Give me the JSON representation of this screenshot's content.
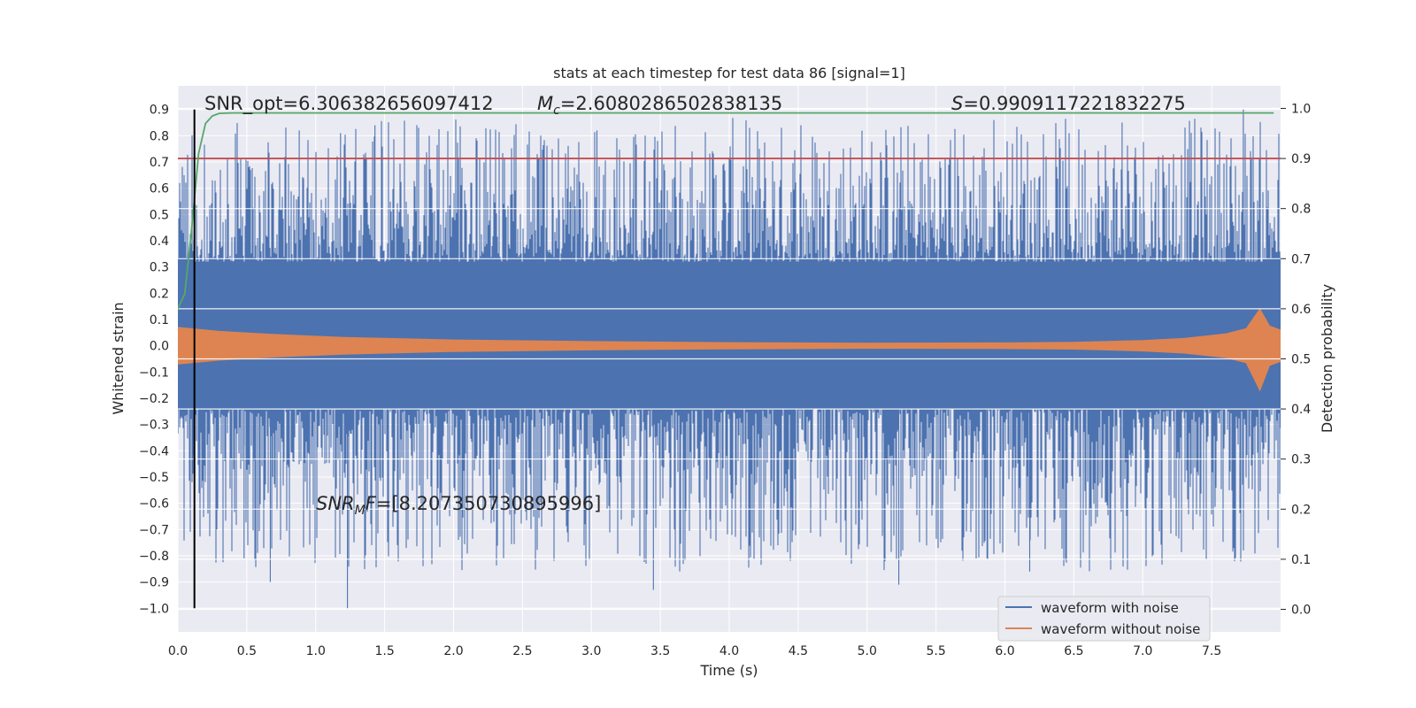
{
  "chart_data": {
    "type": "line",
    "title": "stats at each timestep for test data 86 [signal=1]",
    "xlabel": "Time (s)",
    "ylabel": "Whitened strain",
    "y2label": "Detection probability",
    "xlim": [
      0.0,
      8.0
    ],
    "ylim": [
      -1.09,
      0.99
    ],
    "y2lim": [
      -0.045,
      1.045
    ],
    "xticks": [
      0.0,
      0.5,
      1.0,
      1.5,
      2.0,
      2.5,
      3.0,
      3.5,
      4.0,
      4.5,
      5.0,
      5.5,
      6.0,
      6.5,
      7.0,
      7.5
    ],
    "xtick_labels": [
      "0.0",
      "0.5",
      "1.0",
      "1.5",
      "2.0",
      "2.5",
      "3.0",
      "3.5",
      "4.0",
      "4.5",
      "5.0",
      "5.5",
      "6.0",
      "6.5",
      "7.0",
      "7.5"
    ],
    "yticks": [
      0.9,
      0.8,
      0.7,
      0.6,
      0.5,
      0.4,
      0.3,
      0.2,
      0.1,
      0.0,
      -0.1,
      -0.2,
      -0.3,
      -0.4,
      -0.5,
      -0.6,
      -0.7,
      -0.8,
      -0.9,
      -1.0
    ],
    "ytick_labels": [
      "0.9",
      "0.8",
      "0.7",
      "0.6",
      "0.5",
      "0.4",
      "0.3",
      "0.2",
      "0.1",
      "0.0",
      "−0.1",
      "−0.2",
      "−0.3",
      "−0.4",
      "−0.5",
      "−0.6",
      "−0.7",
      "−0.8",
      "−0.9",
      "−1.0"
    ],
    "y2ticks": [
      1.0,
      0.9,
      0.8,
      0.7,
      0.6,
      0.5,
      0.4,
      0.3,
      0.2,
      0.1,
      0.0
    ],
    "y2tick_labels": [
      "1.0",
      "0.9",
      "0.8",
      "0.7",
      "0.6",
      "0.5",
      "0.4",
      "0.3",
      "0.2",
      "0.1",
      "0.0"
    ],
    "grid": true,
    "legend_position": "bottom-right",
    "legend": [
      "waveform with noise",
      "waveform without noise"
    ],
    "series": [
      {
        "name": "waveform with noise",
        "color": "#4c72b0",
        "axis": "left",
        "band_core": [
          -0.24,
          0.32
        ],
        "envelope_range": [
          -1.0,
          0.9
        ],
        "peaks": [
          {
            "x": 0.88,
            "y": 0.82
          },
          {
            "x": 1.18,
            "y": 0.81
          },
          {
            "x": 1.43,
            "y": 0.84
          },
          {
            "x": 3.04,
            "y": 0.82
          },
          {
            "x": 4.52,
            "y": 0.84
          },
          {
            "x": 5.92,
            "y": 0.86
          },
          {
            "x": 6.85,
            "y": 0.85
          },
          {
            "x": 7.73,
            "y": 0.9
          },
          {
            "x": 1.23,
            "y": -1.0
          },
          {
            "x": 0.67,
            "y": -0.9
          },
          {
            "x": 3.45,
            "y": -0.93
          },
          {
            "x": 5.23,
            "y": -0.91
          },
          {
            "x": 5.87,
            "y": -0.81
          },
          {
            "x": 6.18,
            "y": -0.86
          },
          {
            "x": 0.48,
            "y": -0.81
          }
        ]
      },
      {
        "name": "waveform without noise",
        "color": "#dd8452",
        "axis": "left",
        "envelope": {
          "x": [
            0.0,
            0.3,
            0.7,
            1.2,
            2.0,
            3.0,
            4.0,
            5.0,
            6.0,
            6.5,
            7.0,
            7.3,
            7.6,
            7.75,
            7.85,
            7.92,
            8.0
          ],
          "upper": [
            0.07,
            0.055,
            0.043,
            0.032,
            0.022,
            0.016,
            0.012,
            0.01,
            0.011,
            0.013,
            0.02,
            0.028,
            0.045,
            0.065,
            0.14,
            0.075,
            0.06
          ],
          "lower": [
            -0.07,
            -0.055,
            -0.043,
            -0.032,
            -0.022,
            -0.016,
            -0.012,
            -0.01,
            -0.011,
            -0.013,
            -0.02,
            -0.028,
            -0.045,
            -0.065,
            -0.17,
            -0.075,
            -0.06
          ]
        }
      },
      {
        "name": "",
        "color": "#55a868",
        "axis": "right",
        "x": [
          0.0,
          0.05,
          0.1,
          0.15,
          0.2,
          0.25,
          0.3,
          0.4,
          0.6,
          1.0,
          2.0,
          4.0,
          6.0,
          7.0,
          7.95
        ],
        "y": [
          0.6,
          0.63,
          0.76,
          0.91,
          0.97,
          0.985,
          0.99,
          0.991,
          0.991,
          0.991,
          0.991,
          0.991,
          0.991,
          0.991,
          0.991
        ]
      }
    ],
    "threshold": {
      "axis": "right",
      "y": 0.9,
      "color": "#c44e52"
    },
    "marker_line": {
      "x": 0.12,
      "y_range": [
        -1.0,
        0.9
      ],
      "color": "#000000"
    },
    "annotations": {
      "snr_opt": "SNR_opt=6.306382656097412",
      "mc_symbol": "M",
      "mc_sub": "c",
      "mc_value": "=2.6080286502838135",
      "s_symbol": "S",
      "s_value": "=0.9909117221832275",
      "snr_mf_symbol": "SNR",
      "snr_mf_sub": "M",
      "snr_mf_tail": "F",
      "snr_mf_value": "=[8.207350730895996]"
    }
  }
}
